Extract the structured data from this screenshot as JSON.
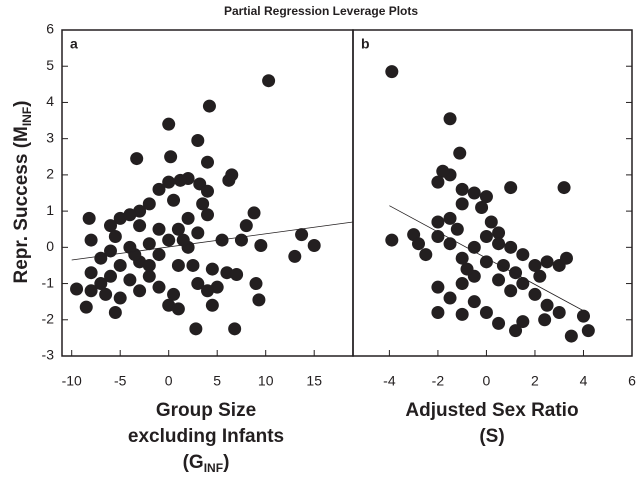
{
  "chart_data": [
    {
      "type": "scatter",
      "title": "Partial Regression Leverage Plots",
      "panel_label": "a",
      "y_label": {
        "main": "Repr. Success (M",
        "sub": "INF",
        "close": ")"
      },
      "x_label": {
        "line1": "Group Size",
        "line2": "excluding Infants",
        "main": "(G",
        "sub": "INF",
        "close": ")"
      },
      "color": "#231f20",
      "xlim": [
        -11,
        19
      ],
      "ylim": [
        -3,
        6
      ],
      "xticks": [
        -10,
        -5,
        0,
        5,
        10,
        15
      ],
      "yticks": [
        -3,
        -2,
        -1,
        0,
        1,
        2,
        3,
        4,
        5,
        6
      ],
      "x": [
        10.3,
        4.2,
        0,
        3,
        -3.3,
        0.2,
        4,
        2,
        1.2,
        3.2,
        6.5,
        6.2,
        -1,
        0,
        4,
        3.5,
        -2,
        -3,
        0.5,
        -5,
        -8.2,
        -4,
        -6,
        -5.5,
        -8,
        -3,
        -1,
        1,
        2,
        4,
        5.5,
        8.8,
        8,
        7.5,
        9.5,
        13.7,
        15,
        13,
        3,
        2,
        0,
        -2,
        -4,
        -6,
        -7,
        -8,
        -5,
        -3,
        -1,
        1,
        -2,
        -4,
        -6,
        -8,
        -9.5,
        -8.5,
        -5,
        -5.5,
        -3,
        -1,
        0.5,
        0,
        1,
        2.5,
        4.5,
        5,
        4,
        4.5,
        3,
        6,
        9,
        9.3,
        7,
        2.8,
        6.8,
        -7,
        -6.5,
        -3.5,
        -2,
        1.5
      ],
      "values": [
        4.6,
        3.9,
        3.4,
        2.95,
        2.45,
        2.5,
        2.35,
        1.9,
        1.85,
        1.75,
        2.0,
        1.85,
        1.6,
        1.8,
        1.55,
        1.2,
        1.2,
        1.0,
        1.3,
        0.8,
        0.8,
        0.9,
        0.6,
        0.3,
        0.2,
        0.6,
        0.5,
        0.5,
        0.8,
        0.9,
        0.2,
        0.95,
        0.6,
        0.2,
        0.05,
        0.35,
        0.05,
        -0.25,
        0.4,
        0,
        0.2,
        0.1,
        0,
        -0.1,
        -0.3,
        -0.7,
        -0.5,
        -0.4,
        -0.2,
        -0.5,
        -0.8,
        -0.9,
        -0.8,
        -1.2,
        -1.15,
        -1.65,
        -1.4,
        -1.8,
        -1.2,
        -1.1,
        -1.3,
        -1.6,
        -1.7,
        -0.5,
        -0.6,
        -1.1,
        -1.2,
        -1.6,
        -1.0,
        -0.7,
        -1.0,
        -1.45,
        -0.75,
        -2.25,
        -2.25,
        -1.0,
        -1.3,
        -0.2,
        -0.5,
        0.2
      ],
      "fit": {
        "x": [
          -10,
          19
        ],
        "y": [
          -0.35,
          0.7
        ]
      }
    },
    {
      "type": "scatter",
      "panel_label": "b",
      "x_label": {
        "line1": "Adjusted Sex Ratio",
        "line2": "(S)"
      },
      "color": "#231f20",
      "xlim": [
        -5.5,
        6
      ],
      "ylim": [
        -3,
        6
      ],
      "xticks": [
        -4,
        -2,
        0,
        2,
        4,
        6
      ],
      "yticks": [
        -3,
        -2,
        -1,
        0,
        1,
        2,
        3,
        4,
        5,
        6
      ],
      "x": [
        -3.9,
        -1.5,
        -1.1,
        -1.5,
        -1.8,
        -2,
        -1,
        1,
        3.2,
        -0.5,
        0,
        -1,
        -0.2,
        -2,
        -1.5,
        -3,
        -3.9,
        -2.8,
        -2.5,
        -2,
        -1.2,
        0.2,
        0.5,
        -0.5,
        0.5,
        1,
        -1,
        0,
        1.5,
        2,
        2.5,
        3,
        3.3,
        -2,
        -1.5,
        -1,
        -0.5,
        0.5,
        1,
        1.5,
        2,
        2.5,
        3,
        2.4,
        1.5,
        1.2,
        0.5,
        -0.5,
        0,
        -1,
        -2,
        3.5,
        4.2,
        4,
        0.7,
        -0.8,
        0,
        1.2,
        2.2,
        -1.5
      ],
      "values": [
        4.85,
        3.55,
        2.6,
        2.0,
        2.1,
        1.8,
        1.6,
        1.65,
        1.65,
        1.5,
        1.4,
        1.2,
        1.1,
        0.7,
        0.8,
        0.35,
        0.2,
        0.1,
        -0.2,
        0.3,
        0.5,
        0.7,
        0.4,
        0.0,
        0.1,
        0,
        -0.3,
        -0.4,
        -0.2,
        -0.5,
        -0.4,
        -0.5,
        -0.3,
        -1.1,
        -1.4,
        -1.0,
        -0.8,
        -0.9,
        -1.2,
        -1.0,
        -1.3,
        -1.6,
        -1.8,
        -2.0,
        -2.05,
        -2.3,
        -2.1,
        -1.5,
        -1.8,
        -1.85,
        -1.8,
        -2.45,
        -2.3,
        -1.9,
        -0.5,
        -0.6,
        0.3,
        -0.7,
        -0.8,
        0.1
      ],
      "fit": {
        "x": [
          -4,
          4
        ],
        "y": [
          1.15,
          -1.75
        ]
      }
    }
  ]
}
